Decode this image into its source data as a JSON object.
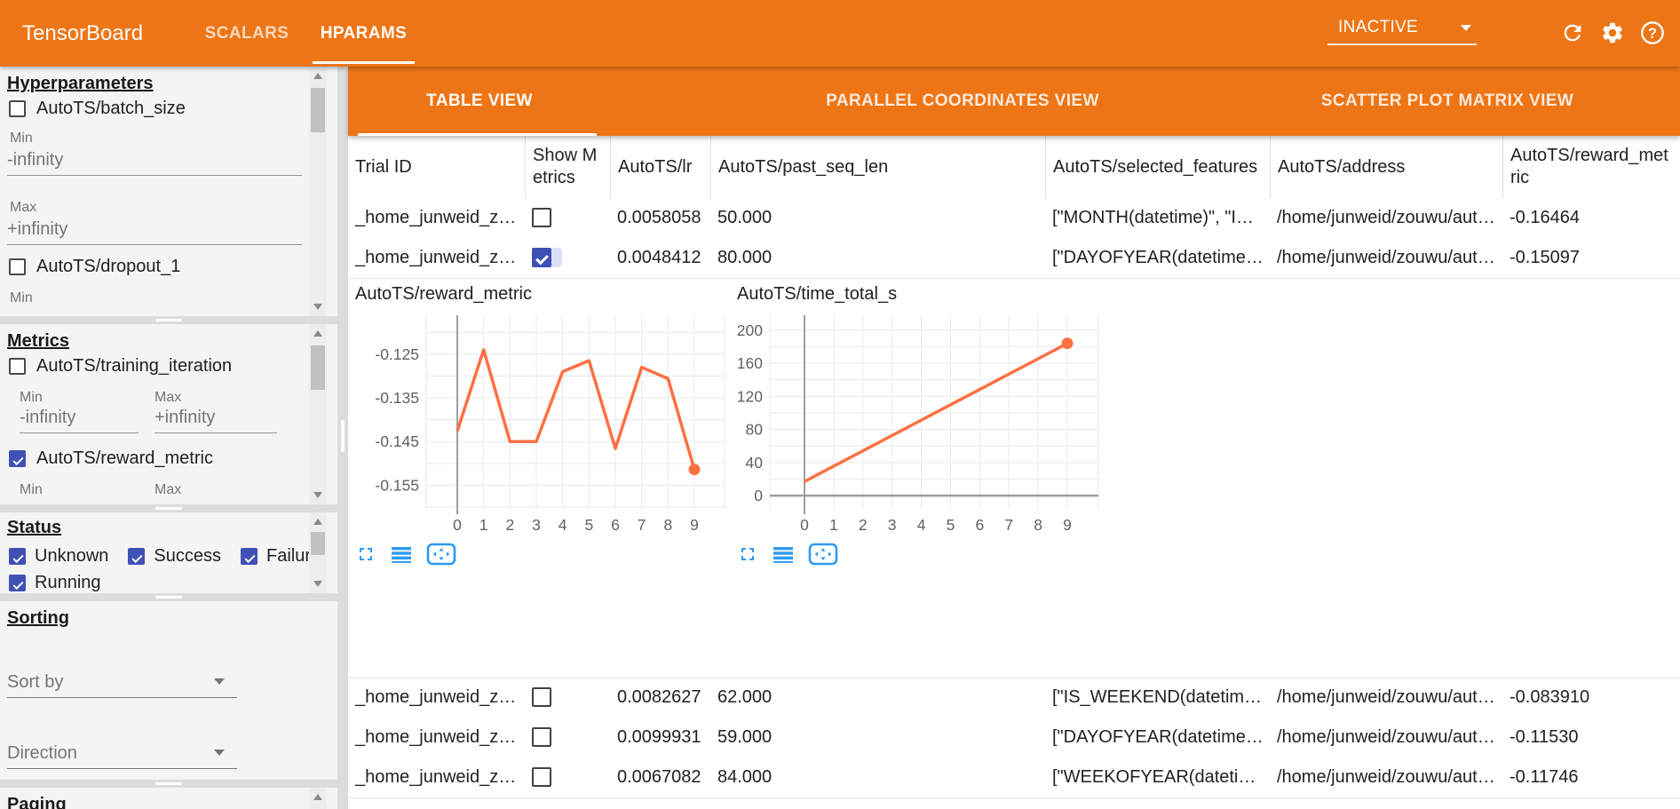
{
  "header": {
    "logo": "TensorBoard",
    "tabs": [
      {
        "label": "SCALARS",
        "active": false
      },
      {
        "label": "HPARAMS",
        "active": true
      }
    ],
    "run_selector": {
      "value": "INACTIVE"
    },
    "accent_color": "#ee7515"
  },
  "sidebar": {
    "hyperparameters": {
      "title": "Hyperparameters",
      "items": [
        {
          "label": "AutoTS/batch_size",
          "checked": false
        },
        {
          "label": "AutoTS/dropout_1",
          "checked": false
        }
      ],
      "min_label": "Min",
      "max_label": "Max",
      "min_value": "-infinity",
      "max_value": "+infinity"
    },
    "metrics": {
      "title": "Metrics",
      "items": [
        {
          "label": "AutoTS/training_iteration",
          "checked": false
        },
        {
          "label": "AutoTS/reward_metric",
          "checked": true
        }
      ],
      "min_label": "Min",
      "max_label": "Max",
      "min_value": "-infinity",
      "max_value": "+infinity"
    },
    "status": {
      "title": "Status",
      "items": [
        {
          "label": "Unknown",
          "checked": true
        },
        {
          "label": "Success",
          "checked": true
        },
        {
          "label": "Failure",
          "checked": true
        },
        {
          "label": "Running",
          "checked": true
        }
      ]
    },
    "sorting": {
      "title": "Sorting",
      "sort_by_placeholder": "Sort by",
      "direction_placeholder": "Direction"
    },
    "paging": {
      "title": "Paging"
    }
  },
  "view_tabs": [
    {
      "label": "TABLE VIEW",
      "active": true
    },
    {
      "label": "PARALLEL COORDINATES VIEW",
      "active": false
    },
    {
      "label": "SCATTER PLOT MATRIX VIEW",
      "active": false
    }
  ],
  "table": {
    "columns": [
      {
        "label": "Trial ID"
      },
      {
        "label": "Show Metrics"
      },
      {
        "label": "AutoTS/lr"
      },
      {
        "label": "AutoTS/past_seq_len"
      },
      {
        "label": "AutoTS/selected_features"
      },
      {
        "label": "AutoTS/address"
      },
      {
        "label": "AutoTS/reward_metric"
      }
    ],
    "rows": [
      {
        "trial_id": "_home_junweid_z…",
        "show_metrics": false,
        "lr": "0.0058058",
        "past_seq_len": "50.000",
        "selected_features": "[\"MONTH(datetime)\", \"I…",
        "address": "/home/junweid/zouwu/aut…",
        "reward_metric": "-0.16464"
      },
      {
        "trial_id": "_home_junweid_z…",
        "show_metrics": true,
        "lr": "0.0048412",
        "past_seq_len": "80.000",
        "selected_features": "[\"DAYOFYEAR(datetime…",
        "address": "/home/junweid/zouwu/aut…",
        "reward_metric": "-0.15097"
      },
      {
        "trial_id": "_home_junweid_z…",
        "show_metrics": false,
        "lr": "0.0082627",
        "past_seq_len": "62.000",
        "selected_features": "[\"IS_WEEKEND(datetim…",
        "address": "/home/junweid/zouwu/aut…",
        "reward_metric": "-0.083910"
      },
      {
        "trial_id": "_home_junweid_z…",
        "show_metrics": false,
        "lr": "0.0099931",
        "past_seq_len": "59.000",
        "selected_features": "[\"DAYOFYEAR(datetime…",
        "address": "/home/junweid/zouwu/aut…",
        "reward_metric": "-0.11530"
      },
      {
        "trial_id": "_home_junweid_z…",
        "show_metrics": false,
        "lr": "0.0067082",
        "past_seq_len": "84.000",
        "selected_features": "[\"WEEKOFYEAR(dateti…",
        "address": "/home/junweid/zouwu/aut…",
        "reward_metric": "-0.11746"
      }
    ]
  },
  "chart_data": [
    {
      "type": "line",
      "title": "AutoTS/reward_metric",
      "x": [
        0,
        1,
        2,
        3,
        4,
        5,
        6,
        7,
        8,
        9
      ],
      "xlabel_ticks": [
        "0",
        "1",
        "2",
        "3",
        "4",
        "5",
        "6",
        "7",
        "8",
        "9"
      ],
      "values": [
        -0.1426,
        -0.124,
        -0.145,
        -0.145,
        -0.129,
        -0.1265,
        -0.1466,
        -0.128,
        -0.1306,
        -0.1514
      ],
      "yticks": [
        -0.125,
        -0.135,
        -0.145,
        -0.155
      ],
      "ytick_labels": [
        "-0.125",
        "-0.135",
        "-0.145",
        "-0.155"
      ],
      "yrange": [
        -0.1604,
        -0.1161
      ],
      "grid_step": 0.005,
      "line_color": "#ff7043",
      "end_marker": true,
      "zero_line": false,
      "grid": true,
      "legend": "none"
    },
    {
      "type": "line",
      "title": "AutoTS/time_total_s",
      "x": [
        0,
        1,
        2,
        3,
        4,
        5,
        6,
        7,
        8,
        9
      ],
      "xlabel_ticks": [
        "0",
        "1",
        "2",
        "3",
        "4",
        "5",
        "6",
        "7",
        "8",
        "9"
      ],
      "values": [
        17,
        35.6,
        54.1,
        72.7,
        91.2,
        109.8,
        128.3,
        146.9,
        165.4,
        184
      ],
      "yticks": [
        0,
        40,
        80,
        120,
        160,
        200
      ],
      "ytick_labels": [
        "0",
        "40",
        "80",
        "120",
        "160",
        "200"
      ],
      "yrange": [
        -16,
        218
      ],
      "grid_step": 20,
      "line_color": "#ff7043",
      "end_marker": true,
      "zero_line": true,
      "grid": true,
      "legend": "none"
    }
  ],
  "chart_toolbar_icons": [
    "fullscreen-icon",
    "lines-icon",
    "fit-pan-icon"
  ],
  "chart_icon_color": "#2e9bf3"
}
